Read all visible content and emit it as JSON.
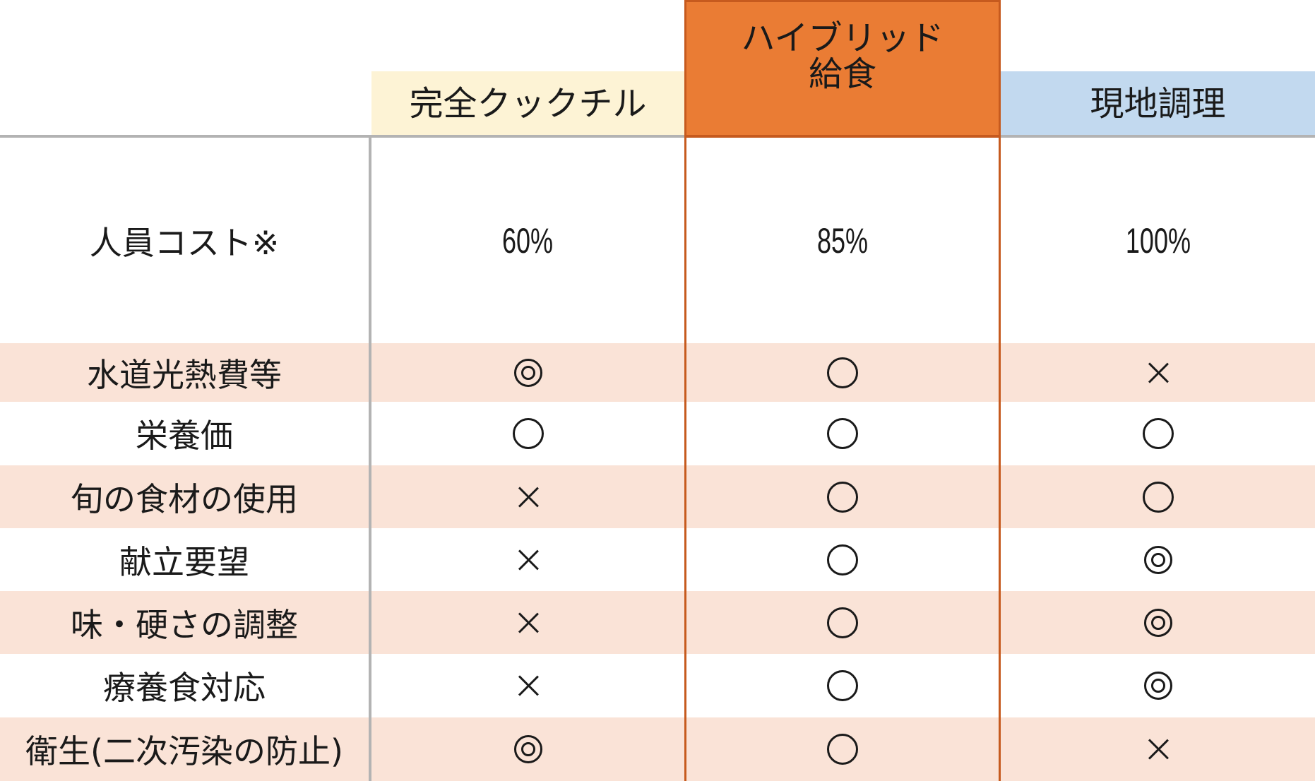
{
  "columns": [
    {
      "label": "完全クックチル",
      "color": "#fdf3d5"
    },
    {
      "label": "ハイブリッド\n給食",
      "color": "#ea7c34"
    },
    {
      "label": "現地調理",
      "color": "#c2d9ef"
    }
  ],
  "rows": [
    {
      "label": "人員コスト※",
      "values": [
        "60%",
        "85%",
        "100%"
      ],
      "shaded": false
    },
    {
      "label": "水道光熱費等",
      "values": [
        "◎",
        "○",
        "×"
      ],
      "shaded": true
    },
    {
      "label": "栄養価",
      "values": [
        "○",
        "○",
        "○"
      ],
      "shaded": false
    },
    {
      "label": "旬の食材の使用",
      "values": [
        "×",
        "○",
        "○"
      ],
      "shaded": true
    },
    {
      "label": "献立要望",
      "values": [
        "×",
        "○",
        "◎"
      ],
      "shaded": false
    },
    {
      "label": "味・硬さの調整",
      "values": [
        "×",
        "○",
        "◎"
      ],
      "shaded": true
    },
    {
      "label": "療養食対応",
      "values": [
        "×",
        "○",
        "◎"
      ],
      "shaded": false
    },
    {
      "label": "衛生(二次汚染の防止)",
      "values": [
        "◎",
        "○",
        "×"
      ],
      "shaded": true
    }
  ],
  "colors": {
    "row_shade": "#fae3d7",
    "highlight_border": "#c65a1e",
    "grid_line": "#b3b3b3"
  }
}
